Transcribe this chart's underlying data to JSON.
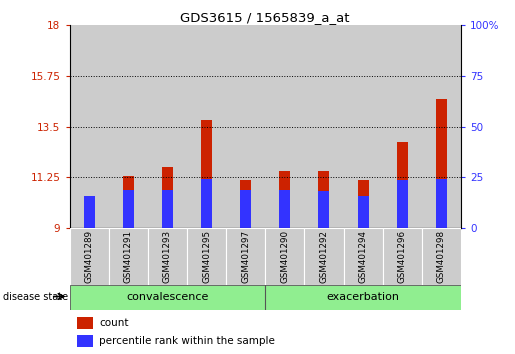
{
  "title": "GDS3615 / 1565839_a_at",
  "samples": [
    "GSM401289",
    "GSM401291",
    "GSM401293",
    "GSM401295",
    "GSM401297",
    "GSM401290",
    "GSM401292",
    "GSM401294",
    "GSM401296",
    "GSM401298"
  ],
  "count_values": [
    10.2,
    11.3,
    11.7,
    13.8,
    11.15,
    11.55,
    11.55,
    11.15,
    12.8,
    14.7
  ],
  "percentile_values": [
    10.45,
    10.7,
    10.7,
    11.2,
    10.7,
    10.7,
    10.65,
    10.45,
    11.15,
    11.2
  ],
  "ymin": 9,
  "ymax": 18,
  "yticks": [
    9,
    11.25,
    13.5,
    15.75,
    18
  ],
  "ytick_labels": [
    "9",
    "11.25",
    "13.5",
    "15.75",
    "18"
  ],
  "right_yticks": [
    0,
    25,
    50,
    75,
    100
  ],
  "right_ytick_labels": [
    "0",
    "25",
    "50",
    "75",
    "100%"
  ],
  "groups": [
    {
      "label": "convalescence",
      "start": 0,
      "end": 5
    },
    {
      "label": "exacerbation",
      "start": 5,
      "end": 10
    }
  ],
  "group_color": "#90EE90",
  "bar_color_red": "#CC2200",
  "bar_color_blue": "#3333FF",
  "legend_count_label": "count",
  "legend_percentile_label": "percentile rank within the sample",
  "disease_state_label": "disease state",
  "yticklabel_color_left": "#CC2200",
  "yticklabel_color_right": "#3333FF",
  "col_bg_color": "#CCCCCC"
}
